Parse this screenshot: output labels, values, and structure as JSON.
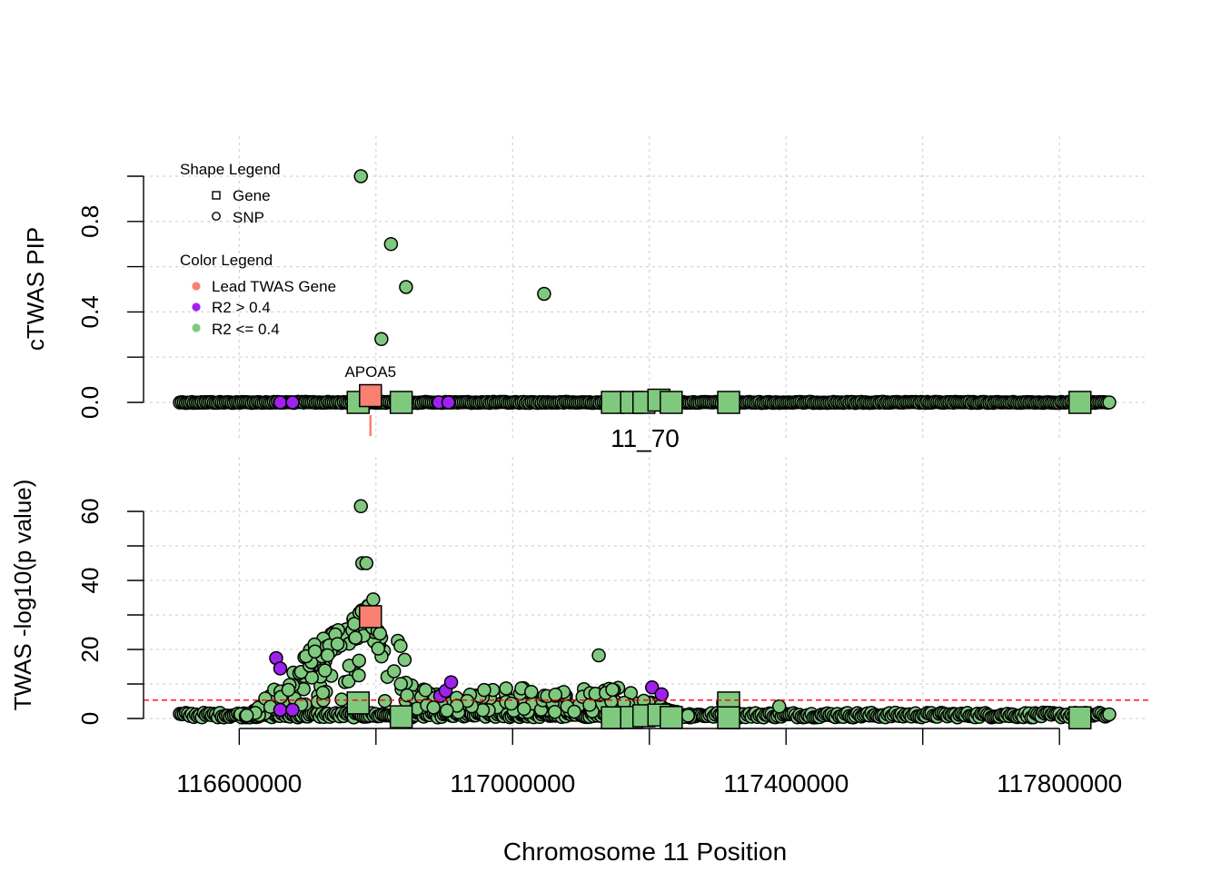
{
  "chart_data": [
    {
      "type": "scatter",
      "panel": "top",
      "ylabel": "cTWAS PIP",
      "ylim": [
        0,
        1
      ],
      "yticks": [
        0.0,
        0.4,
        0.8
      ],
      "ytick_labels": [
        "0.0",
        "0.4",
        "0.8"
      ],
      "yminor_ticks": [
        0.0,
        0.2,
        0.4,
        0.6,
        0.8,
        1.0
      ],
      "grid": true,
      "colors": {
        "lead": "#FA8072",
        "high_r2": "#A020F0",
        "low_r2": "#7FC97F",
        "outline": "#000000"
      },
      "legend": {
        "position": "top-left",
        "shape_title": "Shape Legend",
        "shape_items": [
          {
            "label": "Gene",
            "shape": "square"
          },
          {
            "label": "SNP",
            "shape": "circle"
          }
        ],
        "color_title": "Color Legend",
        "color_items": [
          {
            "label": "Lead TWAS Gene",
            "color": "#FA8072"
          },
          {
            "label": "R2 > 0.4",
            "color": "#A020F0"
          },
          {
            "label": "R2 <= 0.4",
            "color": "#7FC97F"
          }
        ]
      },
      "highlighted_snps": [
        {
          "x": 116778000,
          "y": 1.0
        },
        {
          "x": 116822000,
          "y": 0.7
        },
        {
          "x": 116844000,
          "y": 0.51
        },
        {
          "x": 117046000,
          "y": 0.48
        },
        {
          "x": 116808000,
          "y": 0.28
        }
      ],
      "purple_snps": [
        {
          "x": 116660000,
          "y": 0.0
        },
        {
          "x": 116678000,
          "y": 0.0
        },
        {
          "x": 116892000,
          "y": 0.0
        },
        {
          "x": 116906000,
          "y": 0.0
        }
      ],
      "lead_gene": {
        "name": "APOA5",
        "x": 116792000,
        "y": 0.03
      },
      "genes": [
        {
          "x": 116774000,
          "y": 0.0
        },
        {
          "x": 116837000,
          "y": 0.0
        },
        {
          "x": 117146000,
          "y": 0.0
        },
        {
          "x": 117174000,
          "y": 0.0
        },
        {
          "x": 117192000,
          "y": 0.0
        },
        {
          "x": 117214000,
          "y": 0.01
        },
        {
          "x": 117232000,
          "y": 0.0
        },
        {
          "x": 117316000,
          "y": 0.0
        },
        {
          "x": 117830000,
          "y": 0.0
        }
      ],
      "region_label": "11_70"
    },
    {
      "type": "scatter",
      "panel": "bottom",
      "xlabel": "Chromosome 11 Position",
      "ylabel": "TWAS -log10(p value)",
      "xlim": [
        116460000,
        117930000
      ],
      "xticks": [
        116600000,
        117000000,
        117400000,
        117800000
      ],
      "xtick_labels": [
        "116600000",
        "117000000",
        "117400000",
        "117800000"
      ],
      "xminor_ticks": [
        116600000,
        116800000,
        117000000,
        117200000,
        117400000,
        117600000,
        117800000
      ],
      "ylim": [
        0,
        65
      ],
      "yticks": [
        0,
        20,
        40,
        60
      ],
      "ytick_labels": [
        "0",
        "20",
        "40",
        "60"
      ],
      "yminor_ticks": [
        0,
        10,
        20,
        30,
        40,
        50,
        60
      ],
      "significance_threshold": 5.3,
      "threshold_color": "#FF0000",
      "grid": true,
      "notable_snps": [
        {
          "x": 116778000,
          "y": 61.5
        },
        {
          "x": 116780000,
          "y": 45
        },
        {
          "x": 116786000,
          "y": 45
        },
        {
          "x": 116796000,
          "y": 34.5
        },
        {
          "x": 116832000,
          "y": 22.5
        },
        {
          "x": 116836000,
          "y": 21
        },
        {
          "x": 116842000,
          "y": 17
        },
        {
          "x": 117126000,
          "y": 18.3
        },
        {
          "x": 117308000,
          "y": 4.5
        },
        {
          "x": 117390000,
          "y": 3.5
        }
      ],
      "purple_snps": [
        {
          "x": 116654000,
          "y": 17.5
        },
        {
          "x": 116660000,
          "y": 14.5
        },
        {
          "x": 116660000,
          "y": 2.5
        },
        {
          "x": 116678000,
          "y": 2.5
        },
        {
          "x": 116894000,
          "y": 6.5
        },
        {
          "x": 116902000,
          "y": 8
        },
        {
          "x": 116910000,
          "y": 10.5
        },
        {
          "x": 117204000,
          "y": 9
        },
        {
          "x": 117218000,
          "y": 7
        }
      ],
      "lead_gene": {
        "name": "APOA5",
        "x": 116792000,
        "y": 29.5
      },
      "genes": [
        {
          "x": 116774000,
          "y": 4.5
        },
        {
          "x": 116837000,
          "y": 0.5
        },
        {
          "x": 117146000,
          "y": 0.2
        },
        {
          "x": 117174000,
          "y": 0.3
        },
        {
          "x": 117192000,
          "y": 0.8
        },
        {
          "x": 117214000,
          "y": 1.0
        },
        {
          "x": 117232000,
          "y": 0.3
        },
        {
          "x": 117316000,
          "y": 4.5
        },
        {
          "x": 117316000,
          "y": 0.2
        },
        {
          "x": 117830000,
          "y": 0.2
        }
      ]
    }
  ]
}
